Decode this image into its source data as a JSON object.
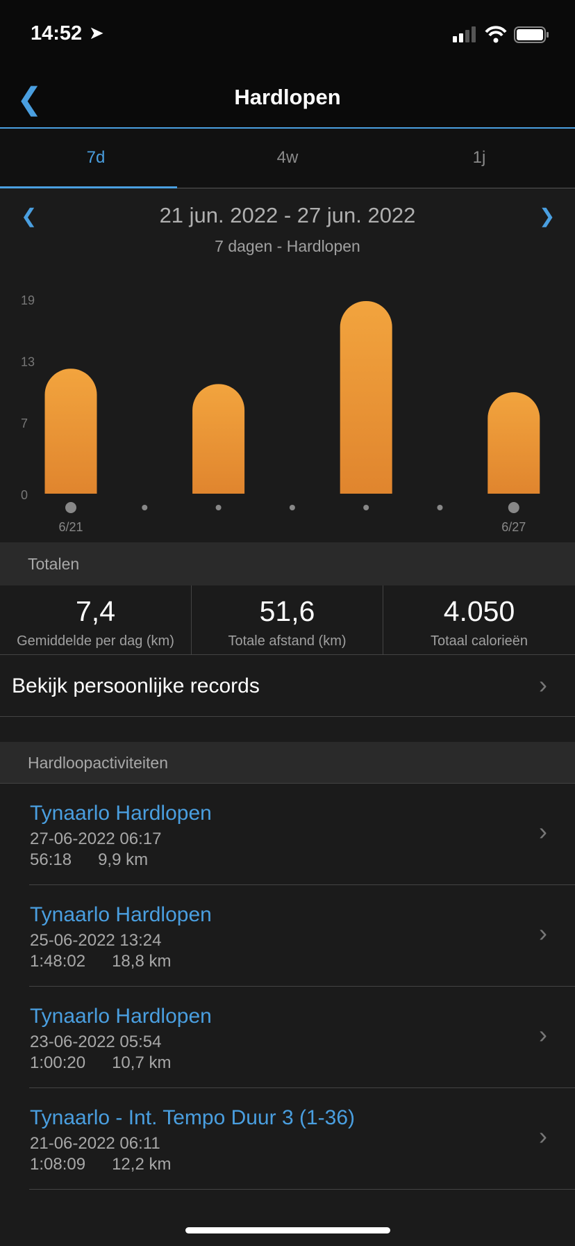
{
  "status_bar": {
    "time": "14:52"
  },
  "header": {
    "title": "Hardlopen"
  },
  "tabs": [
    {
      "label": "7d",
      "active": true
    },
    {
      "label": "4w"
    },
    {
      "label": "1j"
    }
  ],
  "range": {
    "title": "21 jun. 2022 - 27 jun. 2022",
    "subtitle": "7 dagen - Hardlopen"
  },
  "colors": {
    "accent": "#4a9fe0",
    "bar_top": "#f2a43e",
    "bar_bottom": "#e0852e"
  },
  "chart_data": {
    "type": "bar",
    "categories": [
      "6/21",
      "6/22",
      "6/23",
      "6/24",
      "6/25",
      "6/26",
      "6/27"
    ],
    "values": [
      12.2,
      0,
      10.7,
      0,
      18.8,
      0,
      9.9
    ],
    "x_tick_labels": [
      "6/21",
      "6/27"
    ],
    "y_ticks": [
      "0",
      "7",
      "13",
      "19"
    ],
    "ylim": [
      0,
      19
    ],
    "grid": false
  },
  "totals": {
    "header": "Totalen",
    "stats": [
      {
        "value": "7,4",
        "label": "Gemiddelde per dag (km)"
      },
      {
        "value": "51,6",
        "label": "Totale afstand (km)"
      },
      {
        "value": "4.050",
        "label": "Totaal calorieën"
      }
    ]
  },
  "records_link": "Bekijk persoonlijke records",
  "activities": {
    "header": "Hardloopactiviteiten",
    "items": [
      {
        "title": "Tynaarlo Hardlopen",
        "date": "27-06-2022 06:17",
        "duration": "56:18",
        "distance": "9,9 km"
      },
      {
        "title": "Tynaarlo Hardlopen",
        "date": "25-06-2022 13:24",
        "duration": "1:48:02",
        "distance": "18,8 km"
      },
      {
        "title": "Tynaarlo Hardlopen",
        "date": "23-06-2022 05:54",
        "duration": "1:00:20",
        "distance": "10,7 km"
      },
      {
        "title": "Tynaarlo - Int. Tempo Duur 3 (1-36)",
        "date": "21-06-2022 06:11",
        "duration": "1:08:09",
        "distance": "12,2 km"
      }
    ]
  }
}
